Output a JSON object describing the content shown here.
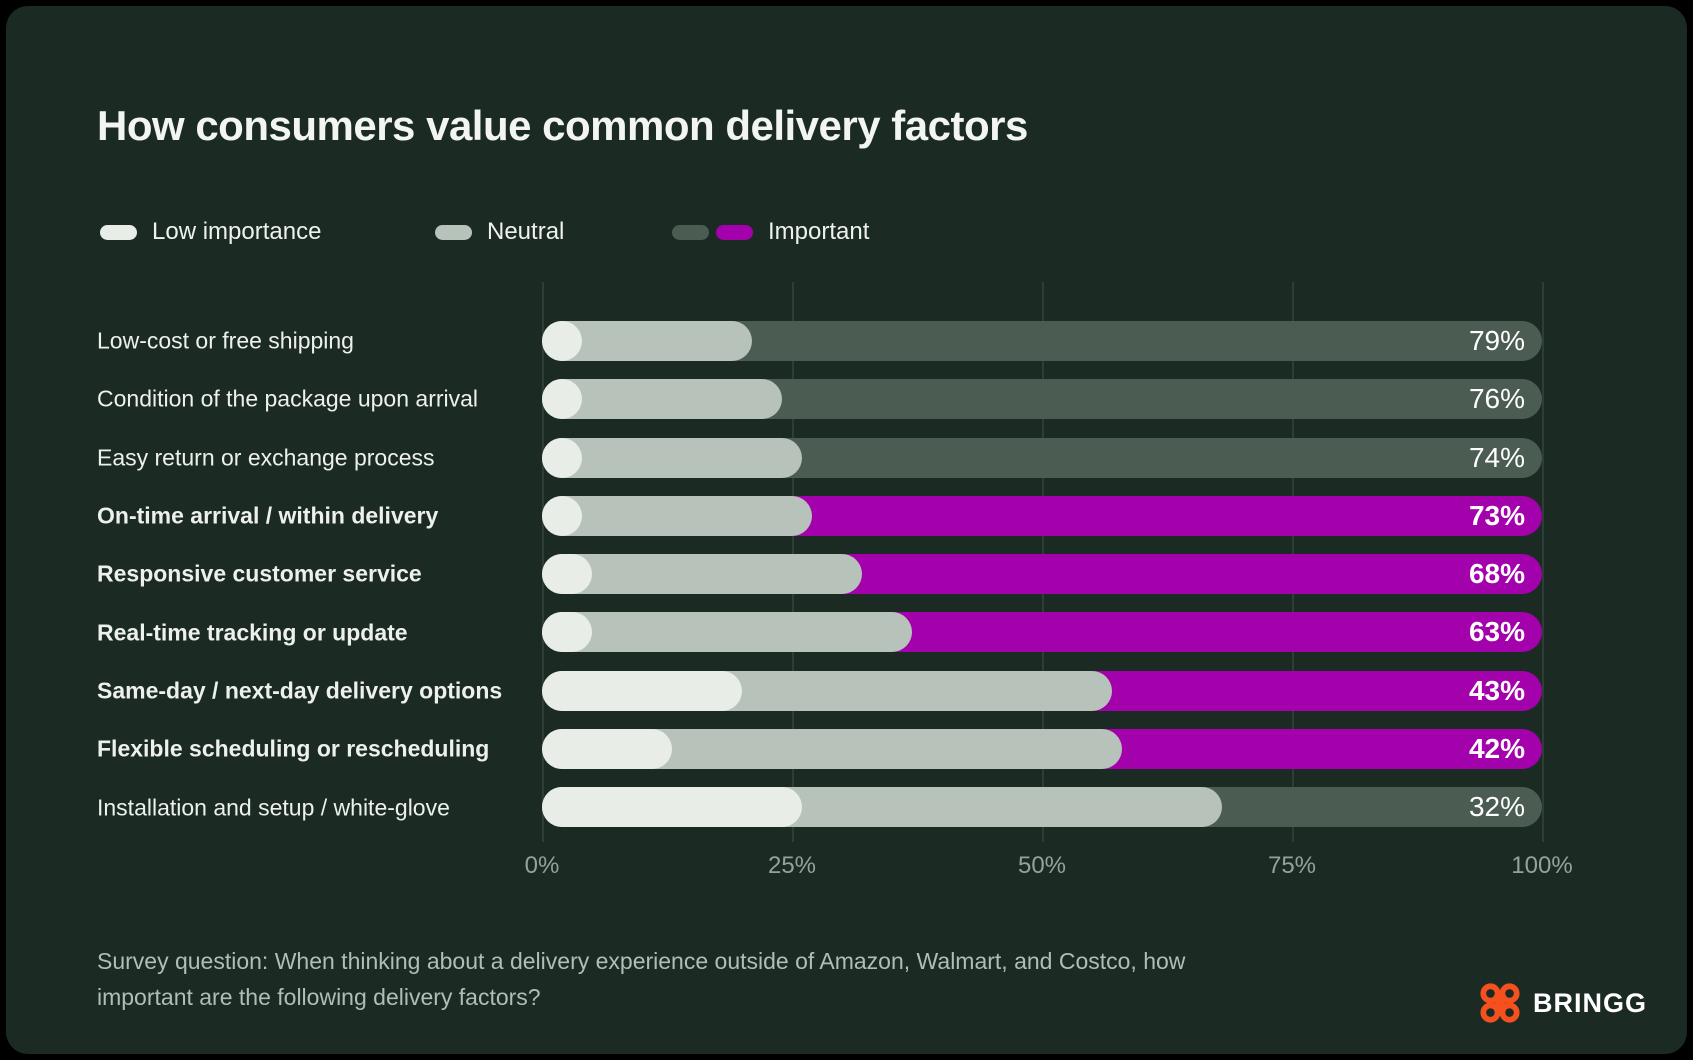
{
  "title": "How consumers value common delivery factors",
  "legend": [
    {
      "label": "Low importance",
      "swatches": [
        "#e9ede8"
      ]
    },
    {
      "label": "Neutral",
      "swatches": [
        "#b7c3ba"
      ]
    },
    {
      "label": "Important",
      "swatches": [
        "#4b5c52",
        "#a301ab"
      ]
    }
  ],
  "colors": {
    "background": "#1b2b23",
    "frame": "#000000",
    "low_importance": "#e9ede8",
    "neutral": "#b7c3ba",
    "important_default": "#4b5c52",
    "important_highlight": "#a301ab",
    "gridline": "#2e3e36",
    "axis_text": "#93a39b",
    "text": "#eef1ed",
    "brand_orange": "#f5501e"
  },
  "chart_data": {
    "type": "bar",
    "orientation": "horizontal",
    "stacked": true,
    "xlim": [
      0,
      100
    ],
    "x_ticks": [
      "0%",
      "25%",
      "50%",
      "75%",
      "100%"
    ],
    "grid": "vertical",
    "legend_position": "top",
    "categories": [
      "Low-cost or free shipping",
      "Condition of the package upon arrival",
      "Easy return or exchange process",
      "On-time arrival / within delivery",
      "Responsive customer service",
      "Real-time tracking or update",
      "Same-day / next-day delivery options",
      "Flexible scheduling or rescheduling",
      "Installation and setup / white-glove"
    ],
    "series": [
      {
        "name": "Low importance",
        "values": [
          4,
          4,
          4,
          4,
          5,
          5,
          20,
          13,
          26
        ]
      },
      {
        "name": "Neutral",
        "values": [
          17,
          20,
          22,
          23,
          27,
          32,
          37,
          45,
          42
        ]
      },
      {
        "name": "Important",
        "values": [
          79,
          76,
          74,
          73,
          68,
          63,
          43,
          42,
          32
        ]
      }
    ],
    "value_labels": [
      "79%",
      "76%",
      "74%",
      "73%",
      "68%",
      "63%",
      "43%",
      "42%",
      "32%"
    ],
    "highlighted_magenta": [
      false,
      false,
      false,
      true,
      true,
      true,
      true,
      true,
      false
    ]
  },
  "footnote": "Survey question: When thinking about a delivery experience outside of Amazon, Walmart, and Costco, how important are the following delivery factors?",
  "brand": {
    "name": "BRINGG"
  }
}
